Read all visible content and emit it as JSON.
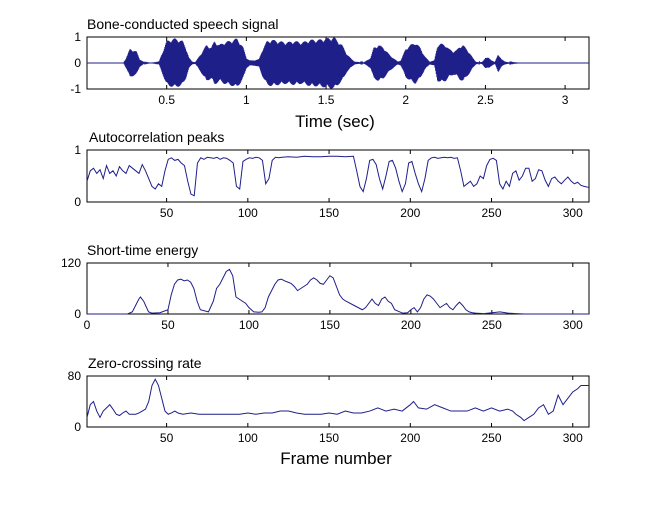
{
  "colors": {
    "line": "#1f1f8a",
    "axis": "#000000",
    "background": "#ffffff"
  },
  "chart_data": [
    {
      "type": "line",
      "title": "Bone-conducted speech signal",
      "xlabel": "Time (sec)",
      "ylabel": "",
      "xlim": [
        0,
        3.15
      ],
      "ylim": [
        -1,
        1
      ],
      "xticks": [
        0.5,
        1,
        1.5,
        2,
        2.5,
        3
      ],
      "xtick_labels": [
        "0.5",
        "1",
        "1.5",
        "2",
        "2.5",
        "3"
      ],
      "yticks": [
        -1,
        0,
        1
      ],
      "ytick_labels": [
        "-1",
        "0",
        "1"
      ],
      "grid": false,
      "series": [
        {
          "kind": "waveform-envelope",
          "x": [
            0.0,
            0.23,
            0.25,
            0.27,
            0.29,
            0.31,
            0.33,
            0.36,
            0.4,
            0.45,
            0.5,
            0.52,
            0.55,
            0.58,
            0.6,
            0.62,
            0.64,
            0.66,
            0.68,
            0.72,
            0.75,
            0.78,
            0.8,
            0.83,
            0.86,
            0.89,
            0.92,
            0.94,
            0.96,
            0.98,
            1.0,
            1.02,
            1.05,
            1.08,
            1.1,
            1.13,
            1.16,
            1.2,
            1.25,
            1.3,
            1.35,
            1.4,
            1.45,
            1.5,
            1.55,
            1.6,
            1.63,
            1.66,
            1.68,
            1.7,
            1.72,
            1.74,
            1.78,
            1.8,
            1.83,
            1.86,
            1.9,
            1.93,
            1.95,
            1.97,
            2.0,
            2.03,
            2.06,
            2.09,
            2.12,
            2.15,
            2.18,
            2.2,
            2.22,
            2.25,
            2.27,
            2.3,
            2.32,
            2.34,
            2.36,
            2.4,
            2.42,
            2.44,
            2.46,
            2.48,
            2.5,
            2.52,
            2.54,
            2.56,
            2.58,
            2.6,
            2.62,
            2.64,
            2.68,
            2.72,
            3.15
          ],
          "amp": [
            0.0,
            0.0,
            0.25,
            0.55,
            0.5,
            0.45,
            0.15,
            0.02,
            0.0,
            0.02,
            0.85,
            0.9,
            0.95,
            0.9,
            0.85,
            0.6,
            0.2,
            0.05,
            0.03,
            0.4,
            0.7,
            0.6,
            0.85,
            0.7,
            0.8,
            0.85,
            0.9,
            0.95,
            0.8,
            0.6,
            0.2,
            0.1,
            0.1,
            0.15,
            0.5,
            0.85,
            0.9,
            0.85,
            0.8,
            0.85,
            0.8,
            0.9,
            0.9,
            0.95,
            1.0,
            0.7,
            0.35,
            0.15,
            0.05,
            0.04,
            0.02,
            0.03,
            0.2,
            0.6,
            0.7,
            0.6,
            0.3,
            0.15,
            0.05,
            0.1,
            0.55,
            0.7,
            0.8,
            0.6,
            0.25,
            0.05,
            0.1,
            0.7,
            0.75,
            0.7,
            0.55,
            0.45,
            0.5,
            0.65,
            0.7,
            0.4,
            0.2,
            0.05,
            0.02,
            0.04,
            0.2,
            0.2,
            0.1,
            0.03,
            0.35,
            0.15,
            0.06,
            0.03,
            0.01,
            0.0,
            0.0
          ]
        }
      ]
    },
    {
      "type": "line",
      "title": "Autocorrelation peaks",
      "xlabel": "",
      "ylabel": "",
      "xlim": [
        1,
        310
      ],
      "ylim": [
        0,
        1
      ],
      "xticks": [
        50,
        100,
        150,
        200,
        250,
        300
      ],
      "xtick_labels": [
        "50",
        "100",
        "150",
        "200",
        "250",
        "300"
      ],
      "yticks": [
        0,
        1
      ],
      "ytick_labels": [
        "0",
        "1"
      ],
      "grid": false,
      "series": [
        {
          "x": [
            1,
            3,
            5,
            7,
            9,
            11,
            13,
            15,
            17,
            19,
            21,
            23,
            25,
            27,
            29,
            31,
            33,
            35,
            37,
            39,
            41,
            43,
            45,
            47,
            49,
            51,
            53,
            55,
            57,
            59,
            61,
            63,
            65,
            67,
            69,
            71,
            73,
            75,
            77,
            79,
            81,
            83,
            85,
            87,
            89,
            91,
            93,
            95,
            97,
            99,
            101,
            103,
            105,
            107,
            109,
            111,
            113,
            115,
            117,
            119,
            121,
            125,
            130,
            135,
            140,
            145,
            150,
            155,
            160,
            165,
            167,
            169,
            171,
            173,
            175,
            177,
            179,
            181,
            183,
            185,
            187,
            189,
            191,
            193,
            195,
            197,
            199,
            201,
            203,
            205,
            207,
            209,
            211,
            213,
            215,
            217,
            219,
            221,
            223,
            225,
            227,
            229,
            231,
            233,
            235,
            237,
            239,
            241,
            243,
            245,
            247,
            249,
            251,
            253,
            255,
            257,
            259,
            261,
            263,
            265,
            267,
            269,
            271,
            273,
            275,
            277,
            279,
            281,
            283,
            285,
            287,
            289,
            291,
            293,
            295,
            297,
            299,
            301,
            303,
            305,
            307,
            310
          ],
          "y": [
            0.4,
            0.6,
            0.65,
            0.55,
            0.62,
            0.45,
            0.7,
            0.55,
            0.6,
            0.5,
            0.68,
            0.6,
            0.55,
            0.7,
            0.65,
            0.6,
            0.55,
            0.72,
            0.6,
            0.45,
            0.3,
            0.25,
            0.35,
            0.3,
            0.6,
            0.82,
            0.85,
            0.8,
            0.82,
            0.75,
            0.7,
            0.4,
            0.15,
            0.12,
            0.75,
            0.85,
            0.82,
            0.86,
            0.85,
            0.84,
            0.86,
            0.82,
            0.85,
            0.84,
            0.8,
            0.75,
            0.3,
            0.25,
            0.78,
            0.82,
            0.85,
            0.84,
            0.86,
            0.85,
            0.8,
            0.35,
            0.45,
            0.8,
            0.86,
            0.85,
            0.86,
            0.87,
            0.86,
            0.88,
            0.87,
            0.87,
            0.88,
            0.88,
            0.87,
            0.88,
            0.6,
            0.3,
            0.2,
            0.45,
            0.8,
            0.82,
            0.72,
            0.45,
            0.25,
            0.5,
            0.78,
            0.8,
            0.65,
            0.4,
            0.2,
            0.35,
            0.75,
            0.78,
            0.55,
            0.35,
            0.2,
            0.45,
            0.8,
            0.85,
            0.86,
            0.84,
            0.85,
            0.86,
            0.85,
            0.86,
            0.84,
            0.85,
            0.6,
            0.3,
            0.35,
            0.4,
            0.3,
            0.35,
            0.5,
            0.45,
            0.7,
            0.82,
            0.84,
            0.8,
            0.35,
            0.25,
            0.4,
            0.3,
            0.55,
            0.6,
            0.42,
            0.5,
            0.65,
            0.65,
            0.4,
            0.45,
            0.62,
            0.6,
            0.42,
            0.3,
            0.45,
            0.48,
            0.4,
            0.35,
            0.42,
            0.48,
            0.4,
            0.35,
            0.38,
            0.32,
            0.3,
            0.28
          ]
        }
      ]
    },
    {
      "type": "line",
      "title": "Short-time energy",
      "xlabel": "",
      "ylabel": "",
      "xlim": [
        0,
        310
      ],
      "ylim": [
        0,
        120
      ],
      "xticks": [
        0,
        50,
        100,
        150,
        200,
        250,
        300
      ],
      "xtick_labels": [
        "0",
        "50",
        "100",
        "150",
        "200",
        "250",
        "300"
      ],
      "yticks": [
        0,
        120
      ],
      "ytick_labels": [
        "0",
        "120"
      ],
      "grid": false,
      "series": [
        {
          "x": [
            0,
            25,
            28,
            30,
            32,
            33,
            35,
            38,
            40,
            45,
            50,
            52,
            54,
            56,
            58,
            60,
            62,
            64,
            66,
            68,
            70,
            75,
            78,
            80,
            82,
            84,
            86,
            88,
            90,
            92,
            94,
            96,
            98,
            100,
            103,
            106,
            108,
            110,
            112,
            114,
            116,
            118,
            120,
            122,
            124,
            126,
            128,
            130,
            132,
            134,
            136,
            138,
            140,
            142,
            144,
            146,
            148,
            150,
            152,
            154,
            156,
            158,
            160,
            165,
            170,
            172,
            174,
            176,
            178,
            180,
            182,
            184,
            186,
            188,
            190,
            195,
            198,
            200,
            202,
            204,
            206,
            208,
            210,
            212,
            214,
            216,
            218,
            220,
            222,
            224,
            226,
            228,
            230,
            232,
            234,
            236,
            238,
            240,
            245,
            250,
            255,
            260,
            265,
            270,
            275,
            280,
            285,
            290,
            295,
            300,
            305,
            310
          ],
          "y": [
            0,
            0,
            5,
            20,
            35,
            40,
            30,
            5,
            2,
            3,
            10,
            45,
            70,
            80,
            82,
            78,
            80,
            75,
            60,
            30,
            10,
            5,
            30,
            60,
            70,
            85,
            100,
            105,
            90,
            40,
            35,
            30,
            25,
            15,
            5,
            4,
            5,
            15,
            40,
            55,
            70,
            80,
            82,
            78,
            75,
            72,
            65,
            55,
            60,
            65,
            70,
            80,
            85,
            80,
            72,
            70,
            80,
            90,
            85,
            65,
            45,
            35,
            30,
            20,
            10,
            15,
            25,
            35,
            25,
            20,
            35,
            40,
            30,
            25,
            10,
            2,
            3,
            10,
            15,
            5,
            15,
            35,
            45,
            42,
            35,
            25,
            15,
            20,
            25,
            15,
            10,
            20,
            28,
            20,
            10,
            5,
            3,
            2,
            1,
            3,
            5,
            2,
            1,
            0,
            0,
            0,
            0,
            0,
            0,
            0,
            0,
            0
          ]
        }
      ]
    },
    {
      "type": "line",
      "title": "Zero-crossing rate",
      "xlabel": "Frame number",
      "ylabel": "",
      "xlim": [
        1,
        310
      ],
      "ylim": [
        0,
        80
      ],
      "xticks": [
        50,
        100,
        150,
        200,
        250,
        300
      ],
      "xtick_labels": [
        "50",
        "100",
        "150",
        "200",
        "250",
        "300"
      ],
      "yticks": [
        0,
        80
      ],
      "ytick_labels": [
        "0",
        "80"
      ],
      "grid": false,
      "series": [
        {
          "x": [
            1,
            3,
            5,
            7,
            9,
            11,
            13,
            15,
            17,
            19,
            21,
            23,
            25,
            27,
            29,
            31,
            33,
            35,
            37,
            39,
            41,
            43,
            45,
            47,
            49,
            51,
            53,
            55,
            57,
            60,
            65,
            70,
            75,
            80,
            85,
            90,
            95,
            100,
            105,
            110,
            115,
            120,
            125,
            130,
            135,
            140,
            145,
            150,
            155,
            160,
            165,
            170,
            175,
            180,
            185,
            190,
            195,
            200,
            202,
            205,
            210,
            215,
            220,
            225,
            230,
            235,
            240,
            245,
            250,
            255,
            260,
            263,
            265,
            268,
            270,
            273,
            276,
            279,
            282,
            285,
            288,
            291,
            294,
            297,
            300,
            303,
            305,
            310
          ],
          "y": [
            15,
            35,
            40,
            25,
            15,
            25,
            30,
            35,
            28,
            20,
            18,
            22,
            25,
            20,
            20,
            20,
            22,
            25,
            28,
            40,
            65,
            75,
            65,
            45,
            25,
            20,
            22,
            25,
            22,
            20,
            22,
            20,
            20,
            20,
            20,
            20,
            20,
            22,
            20,
            22,
            22,
            25,
            25,
            22,
            20,
            20,
            20,
            22,
            20,
            25,
            22,
            22,
            25,
            30,
            25,
            28,
            25,
            35,
            40,
            30,
            28,
            35,
            30,
            25,
            25,
            25,
            30,
            25,
            30,
            25,
            28,
            25,
            20,
            15,
            10,
            15,
            20,
            30,
            35,
            20,
            25,
            50,
            35,
            45,
            55,
            60,
            65,
            65
          ]
        }
      ]
    }
  ],
  "labels": {
    "panel1_title": "Bone-conducted speech signal",
    "panel1_xlabel": "Time (sec)",
    "panel2_title": "Autocorrelation peaks",
    "panel3_title": "Short-time energy",
    "panel4_title": "Zero-crossing rate",
    "panel4_xlabel": "Frame number"
  }
}
